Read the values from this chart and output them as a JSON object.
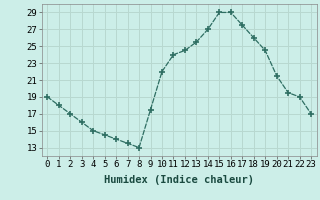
{
  "x": [
    0,
    1,
    2,
    3,
    4,
    5,
    6,
    7,
    8,
    9,
    10,
    11,
    12,
    13,
    14,
    15,
    16,
    17,
    18,
    19,
    20,
    21,
    22,
    23
  ],
  "y": [
    19,
    18,
    17,
    16,
    15,
    14.5,
    14,
    13.5,
    13,
    17.5,
    22,
    24,
    24.5,
    25.5,
    27,
    29,
    29,
    27.5,
    26,
    24.5,
    21.5,
    19.5,
    19,
    17
  ],
  "line_color": "#2e6e62",
  "marker": "+",
  "marker_size": 5,
  "marker_lw": 1.2,
  "bg_color": "#cceee8",
  "grid_color_major": "#b8d8d0",
  "grid_color_minor": "#b8d8d0",
  "xlabel": "Humidex (Indice chaleur)",
  "xlim": [
    -0.5,
    23.5
  ],
  "ylim": [
    12,
    30
  ],
  "yticks": [
    13,
    15,
    17,
    19,
    21,
    23,
    25,
    27,
    29
  ],
  "xticks": [
    0,
    1,
    2,
    3,
    4,
    5,
    6,
    7,
    8,
    9,
    10,
    11,
    12,
    13,
    14,
    15,
    16,
    17,
    18,
    19,
    20,
    21,
    22,
    23
  ],
  "tick_fontsize": 6.5,
  "label_fontsize": 7.5,
  "lw": 0.9
}
